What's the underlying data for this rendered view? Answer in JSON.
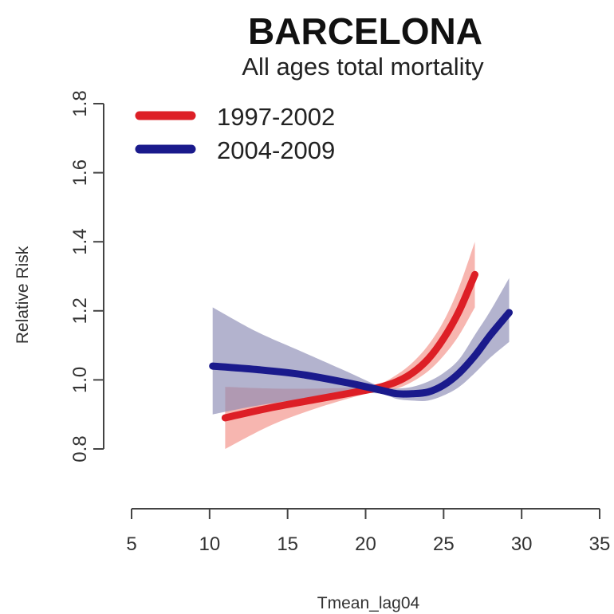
{
  "chart_data": {
    "type": "line",
    "title": "BARCELONA",
    "subtitle": "All ages total mortality",
    "xlabel": "Tmean_lag04",
    "ylabel": "Relative Risk",
    "xlim": [
      5,
      35
    ],
    "ylim": [
      0.8,
      1.8
    ],
    "x_ticks": [
      "5",
      "10",
      "15",
      "20",
      "25",
      "30",
      "35"
    ],
    "y_ticks": [
      "0.8",
      "1.0",
      "1.2",
      "1.4",
      "1.6",
      "1.8"
    ],
    "legend_position": "top-left",
    "grid": false,
    "series": [
      {
        "name": "1997-2002",
        "color": "#dd1f26",
        "band_color": "#f4978e",
        "x": [
          11,
          14,
          17,
          20,
          21,
          22,
          23,
          24,
          25,
          26,
          27
        ],
        "y": [
          0.89,
          0.92,
          0.945,
          0.97,
          0.98,
          0.995,
          1.02,
          1.06,
          1.12,
          1.2,
          1.305
        ],
        "lower": [
          0.8,
          0.87,
          0.92,
          0.96,
          0.97,
          0.975,
          0.995,
          1.025,
          1.07,
          1.13,
          1.21
        ],
        "upper": [
          0.98,
          0.975,
          0.975,
          0.98,
          0.99,
          1.015,
          1.05,
          1.1,
          1.17,
          1.27,
          1.4
        ]
      },
      {
        "name": "2004-2009",
        "color": "#1a1a8c",
        "band_color": "#8a8ab4",
        "x": [
          10.2,
          13,
          16,
          19,
          21,
          22,
          23,
          24,
          25,
          26,
          27,
          28,
          29.2
        ],
        "y": [
          1.04,
          1.03,
          1.015,
          0.99,
          0.97,
          0.96,
          0.96,
          0.965,
          0.985,
          1.02,
          1.07,
          1.13,
          1.195
        ],
        "lower": [
          0.9,
          0.925,
          0.945,
          0.96,
          0.96,
          0.945,
          0.94,
          0.94,
          0.955,
          0.98,
          1.02,
          1.065,
          1.11
        ],
        "upper": [
          1.21,
          1.14,
          1.08,
          1.02,
          0.98,
          0.975,
          0.98,
          0.995,
          1.02,
          1.06,
          1.13,
          1.2,
          1.295
        ]
      }
    ]
  }
}
